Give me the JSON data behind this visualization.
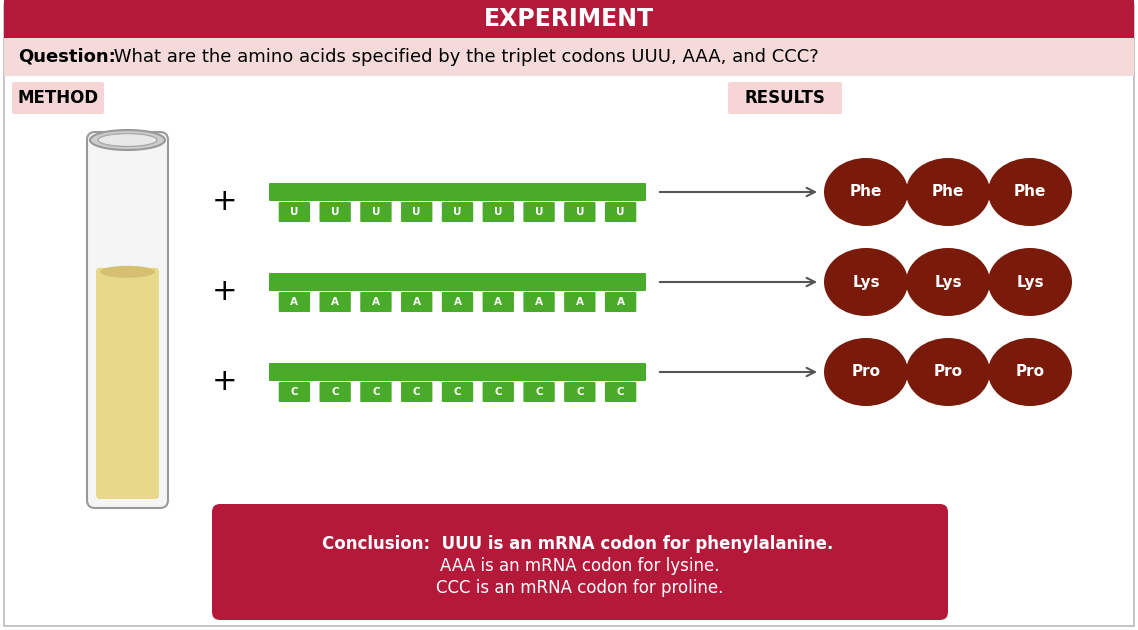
{
  "title": "EXPERIMENT",
  "title_bg": "#b5193a",
  "title_color": "#ffffff",
  "question_bold": "Question:",
  "question_rest": " What are the amino acids specified by the triplet codons UUU, AAA, and CCC?",
  "question_bg": "#f5dada",
  "method_label": "METHOD",
  "results_label": "RESULTS",
  "label_bg": "#f5d5d5",
  "rows": [
    {
      "letters": [
        "U",
        "U",
        "U",
        "U",
        "U",
        "U",
        "U",
        "U",
        "U"
      ],
      "amino_acids": [
        "Phe",
        "Phe",
        "Phe"
      ]
    },
    {
      "letters": [
        "A",
        "A",
        "A",
        "A",
        "A",
        "A",
        "A",
        "A",
        "A"
      ],
      "amino_acids": [
        "Lys",
        "Lys",
        "Lys"
      ]
    },
    {
      "letters": [
        "C",
        "C",
        "C",
        "C",
        "C",
        "C",
        "C",
        "C",
        "C"
      ],
      "amino_acids": [
        "Pro",
        "Pro",
        "Pro"
      ]
    }
  ],
  "rna_bar_color": "#4aaa2a",
  "rna_letter_bg": "#4aaa2a",
  "rna_letter_color": "#ffffff",
  "amino_circle_color": "#7a1a0a",
  "amino_text_color": "#ffffff",
  "conclusion_bg": "#b5193a",
  "conclusion_text_line1": "Conclusion:  UUU is an mRNA codon for phenylalanine.",
  "conclusion_text_line2": "AAA is an mRNA codon for lysine.",
  "conclusion_text_line3": "CCC is an mRNA codon for proline.",
  "conclusion_text_color": "#ffffff",
  "plus_color": "#000000",
  "arrow_color": "#555555",
  "border_color": "#bbbbbb",
  "outer_bg": "#ffffff",
  "inner_bg": "#ffffff",
  "tube_body_color": "#f5f5f5",
  "tube_rim_color": "#cccccc",
  "tube_liquid_color": "#e8d88a",
  "tube_edge_color": "#999999"
}
